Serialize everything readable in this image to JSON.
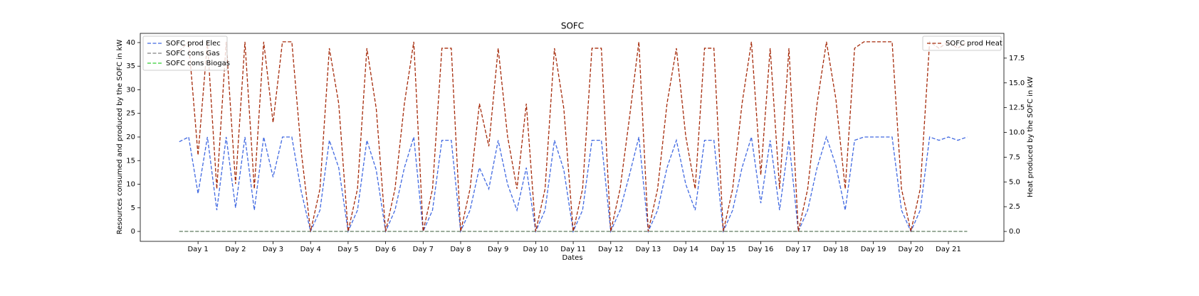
{
  "chart_data": {
    "type": "line",
    "title": "SOFC",
    "xlabel": "Dates",
    "ylabel": "Resources consumed and produced by the SOFC in kW",
    "y2label": "Heat produced by the SOFC in kW",
    "line_style": "dashed",
    "legend": "upper left",
    "legend2": "upper right",
    "xlim": [
      -0.54,
      22.48
    ],
    "ylim": [
      -2.1,
      41.95
    ],
    "y2lim": [
      -1.0,
      20.0
    ],
    "xticks": [
      {
        "value": 1,
        "label": "Day 1"
      },
      {
        "value": 2,
        "label": "Day 2"
      },
      {
        "value": 3,
        "label": "Day 3"
      },
      {
        "value": 4,
        "label": "Day 4"
      },
      {
        "value": 5,
        "label": "Day 5"
      },
      {
        "value": 6,
        "label": "Day 6"
      },
      {
        "value": 7,
        "label": "Day 7"
      },
      {
        "value": 8,
        "label": "Day 8"
      },
      {
        "value": 9,
        "label": "Day 9"
      },
      {
        "value": 10,
        "label": "Day 10"
      },
      {
        "value": 11,
        "label": "Day 11"
      },
      {
        "value": 12,
        "label": "Day 12"
      },
      {
        "value": 13,
        "label": "Day 13"
      },
      {
        "value": 14,
        "label": "Day 14"
      },
      {
        "value": 15,
        "label": "Day 15"
      },
      {
        "value": 16,
        "label": "Day 16"
      },
      {
        "value": 17,
        "label": "Day 17"
      },
      {
        "value": 18,
        "label": "Day 18"
      },
      {
        "value": 19,
        "label": "Day 19"
      },
      {
        "value": 20,
        "label": "Day 20"
      },
      {
        "value": 21,
        "label": "Day 21"
      }
    ],
    "yticks": [
      0,
      5,
      10,
      15,
      20,
      25,
      30,
      35,
      40
    ],
    "y2ticks": [
      {
        "value": 0,
        "label": "0.0"
      },
      2.5,
      {
        "value": 5,
        "label": "5.0"
      },
      7.5,
      {
        "value": 10,
        "label": "10.0"
      },
      12.5,
      {
        "value": 15,
        "label": "15.0"
      },
      17.5
    ],
    "x": [
      0.5,
      0.75,
      1,
      1.25,
      1.5,
      1.75,
      2,
      2.25,
      2.5,
      2.75,
      3,
      3.25,
      3.5,
      3.75,
      4,
      4.25,
      4.5,
      4.75,
      5,
      5.25,
      5.5,
      5.75,
      6,
      6.25,
      6.5,
      6.75,
      7,
      7.25,
      7.5,
      7.75,
      8,
      8.25,
      8.5,
      8.75,
      9,
      9.25,
      9.5,
      9.75,
      10,
      10.25,
      10.5,
      10.75,
      11,
      11.25,
      11.5,
      11.75,
      12,
      12.25,
      12.5,
      12.75,
      13,
      13.25,
      13.5,
      13.75,
      14,
      14.25,
      14.5,
      14.75,
      15,
      15.25,
      15.5,
      15.75,
      16,
      16.25,
      16.5,
      16.75,
      17,
      17.25,
      17.5,
      17.75,
      18,
      18.25,
      18.5,
      18.75,
      19,
      19.25,
      19.5,
      19.75,
      20,
      20.25,
      20.5,
      20.75,
      21,
      21.25,
      21.5
    ],
    "series": [
      {
        "name": "SOFC prod Elec",
        "color": "#4169e1",
        "values": [
          19,
          20,
          8,
          20,
          4.5,
          20,
          5,
          20,
          4.5,
          20,
          11.5,
          20,
          20,
          8.5,
          0,
          4.5,
          19.3,
          13.5,
          0,
          4.5,
          19.3,
          13,
          0,
          4.5,
          13.5,
          20,
          0,
          4.5,
          19.3,
          19.3,
          0,
          4.5,
          13.5,
          9,
          19.3,
          10,
          4.5,
          13.5,
          0,
          4.5,
          19.3,
          13,
          0,
          4.5,
          19.3,
          19.3,
          0,
          4.5,
          12,
          20,
          0,
          4.5,
          13.5,
          19.3,
          10,
          4.5,
          19.3,
          19.3,
          0,
          4.5,
          13.5,
          20,
          6,
          19.3,
          4.5,
          19.3,
          0,
          4.5,
          13.5,
          20,
          14,
          4.5,
          19.3,
          20,
          20,
          20,
          20,
          4.5,
          0,
          4.5,
          20,
          19.3,
          20,
          19.3,
          20
        ]
      },
      {
        "name": "SOFC cons Biogas",
        "color": "#32cd32",
        "values": [
          0,
          0,
          0,
          0,
          0,
          0,
          0,
          0,
          0,
          0,
          0,
          0,
          0,
          0,
          0,
          0,
          0,
          0,
          0,
          0,
          0,
          0,
          0,
          0,
          0,
          0,
          0,
          0,
          0,
          0,
          0,
          0,
          0,
          0,
          0,
          0,
          0,
          0,
          0,
          0,
          0,
          0,
          0,
          0,
          0,
          0,
          0,
          0,
          0,
          0,
          0,
          0,
          0,
          0,
          0,
          0,
          0,
          0,
          0,
          0,
          0,
          0,
          0,
          0,
          0,
          0,
          0,
          0,
          0,
          0,
          0,
          0,
          0,
          0,
          0,
          0,
          0,
          0,
          0,
          0,
          0,
          0,
          0,
          0,
          0
        ]
      },
      {
        "name": "SOFC cons Gas",
        "color": "#808080",
        "values": [
          0,
          0,
          0,
          0,
          0,
          0,
          0,
          0,
          0,
          0,
          0,
          0,
          0,
          0,
          0,
          0,
          0,
          0,
          0,
          0,
          0,
          0,
          0,
          0,
          0,
          0,
          0,
          0,
          0,
          0,
          0,
          0,
          0,
          0,
          0,
          0,
          0,
          0,
          0,
          0,
          0,
          0,
          0,
          0,
          0,
          0,
          0,
          0,
          0,
          0,
          0,
          0,
          0,
          0,
          0,
          0,
          0,
          0,
          0,
          0,
          0,
          0,
          0,
          0,
          0,
          0,
          0,
          0,
          0,
          0,
          0,
          0,
          0,
          0,
          0,
          0,
          0,
          0,
          0,
          0,
          0,
          0,
          0,
          0,
          0
        ]
      },
      {
        "name": "SOFC prod Heat",
        "color": "#a52a0a",
        "axis": "y2",
        "values": [
          18.2,
          19.15,
          7.7,
          19.15,
          4.3,
          19.15,
          4.8,
          19.15,
          4.3,
          19.15,
          11,
          19.15,
          19.15,
          8.1,
          0,
          4.3,
          18.5,
          12.9,
          0,
          4.3,
          18.5,
          12.4,
          0,
          4.3,
          12.9,
          19.15,
          0,
          4.3,
          18.5,
          18.5,
          0,
          4.3,
          12.9,
          8.6,
          18.5,
          9.6,
          4.3,
          12.9,
          0,
          4.3,
          18.5,
          12.4,
          0,
          4.3,
          18.5,
          18.5,
          0,
          4.3,
          11.5,
          19.15,
          0,
          4.3,
          12.9,
          18.5,
          9.6,
          4.3,
          18.5,
          18.5,
          0,
          4.3,
          12.9,
          19.15,
          5.7,
          18.5,
          4.3,
          18.5,
          0,
          4.3,
          12.9,
          19.15,
          13.4,
          4.3,
          18.5,
          19.15,
          19.15,
          19.15,
          19.15,
          4.3,
          0,
          4.3,
          19.15,
          18.5,
          19.15,
          18.5,
          19.15
        ]
      }
    ]
  }
}
